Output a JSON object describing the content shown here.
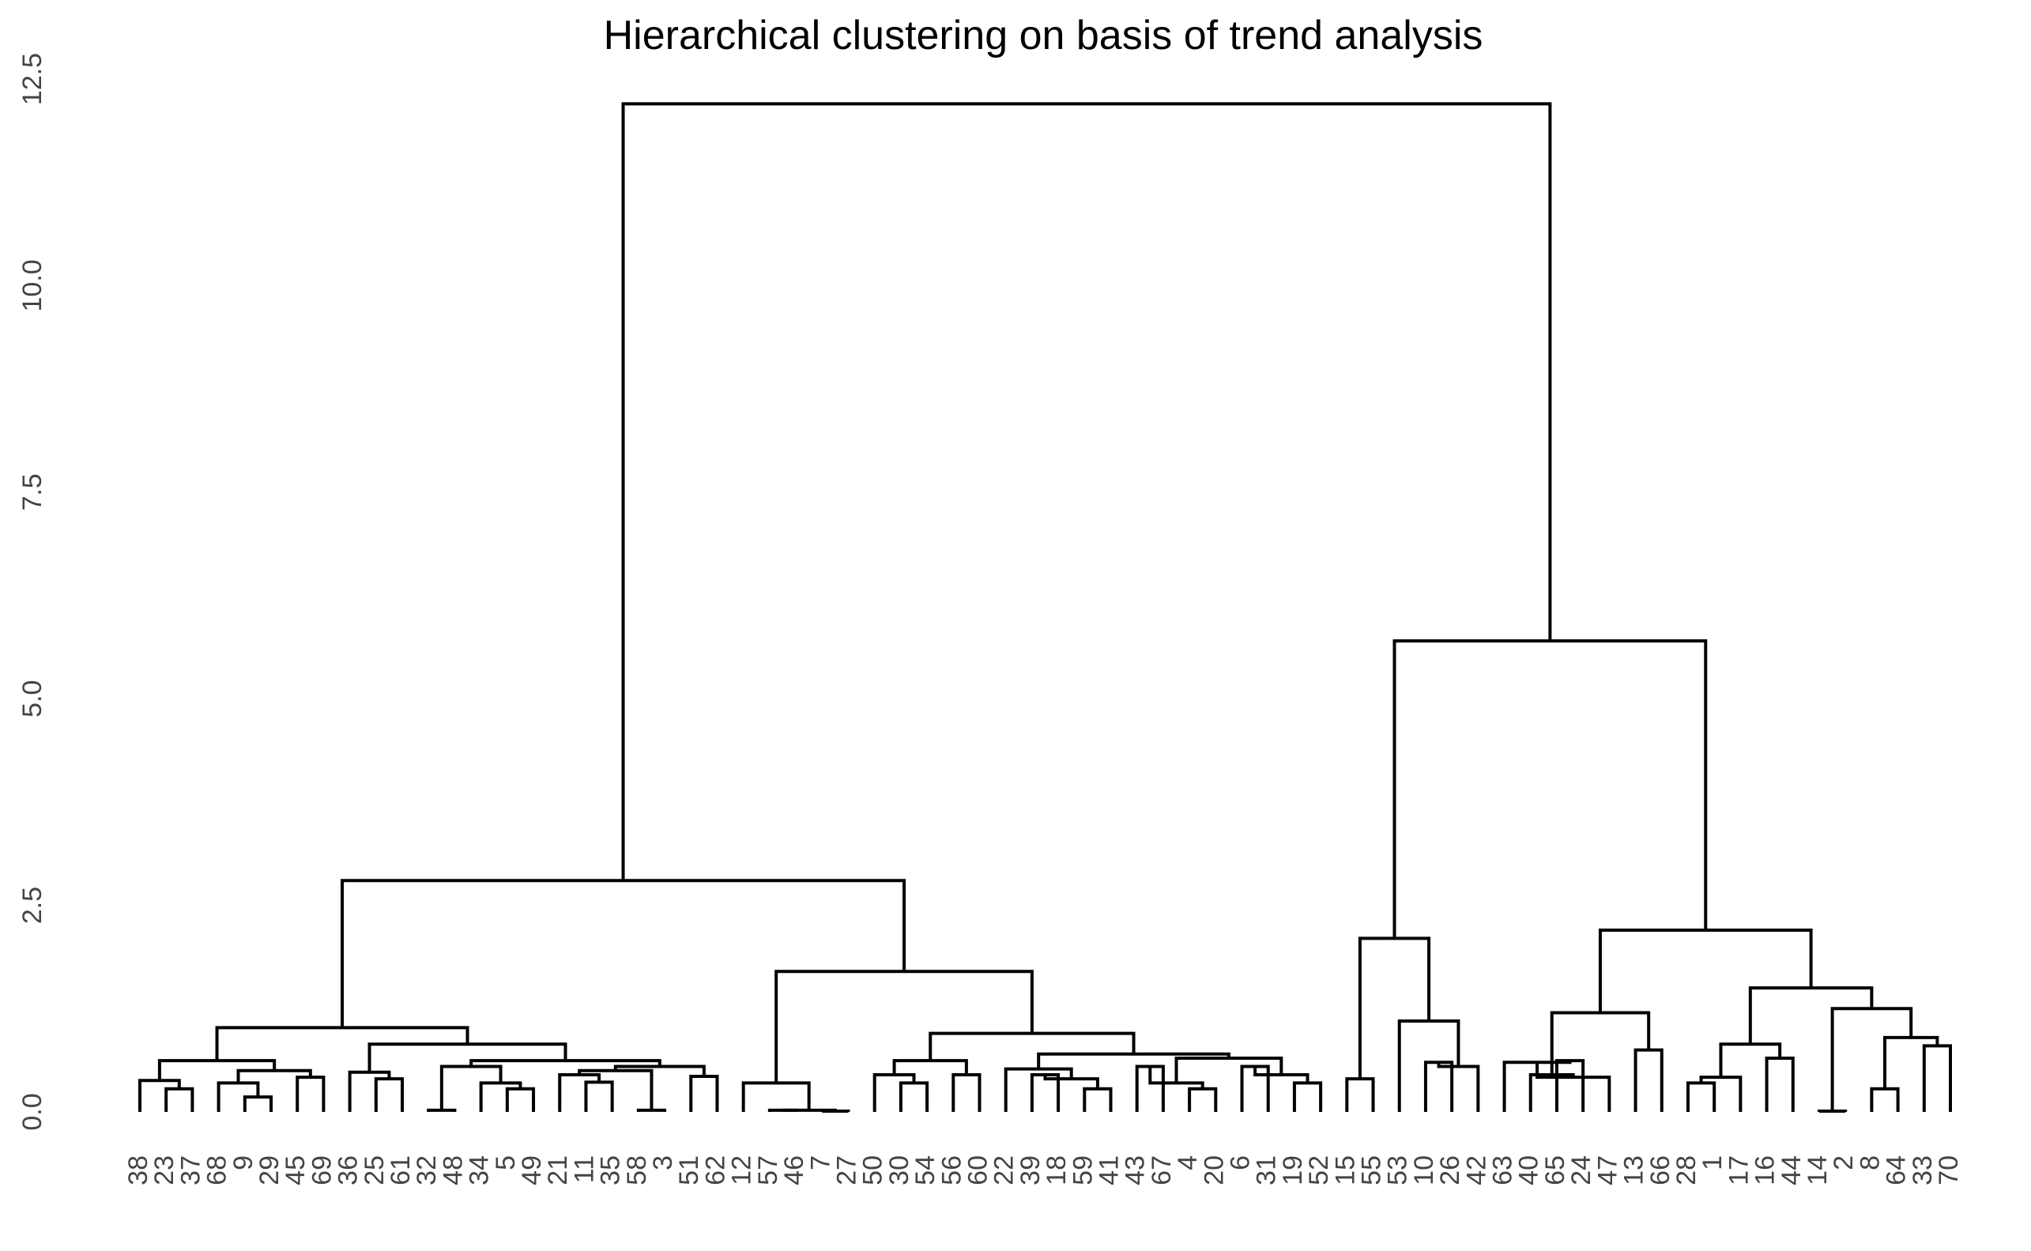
{
  "chart_data": {
    "type": "dendrogram",
    "title": "Hierarchical clustering on basis of  trend analysis",
    "xlabel": "",
    "ylabel": "",
    "ylim": [
      0,
      12.5
    ],
    "yticks": [
      "0.0",
      "2.5",
      "5.0",
      "7.5",
      "10.0",
      "12.5"
    ],
    "leaves": [
      "38",
      "23",
      "37",
      "68",
      "9",
      "29",
      "45",
      "69",
      "36",
      "25",
      "61",
      "32",
      "48",
      "34",
      "5",
      "49",
      "21",
      "11",
      "35",
      "58",
      "3",
      "51",
      "62",
      "12",
      "57",
      "46",
      "7",
      "27",
      "50",
      "30",
      "54",
      "56",
      "60",
      "22",
      "39",
      "18",
      "59",
      "41",
      "43",
      "67",
      "4",
      "20",
      "6",
      "31",
      "19",
      "52",
      "15",
      "55",
      "53",
      "10",
      "26",
      "42",
      "63",
      "40",
      "65",
      "24",
      "47",
      "13",
      "66",
      "28",
      "1",
      "17",
      "16",
      "44",
      "14",
      "2",
      "8",
      "64",
      "33",
      "70"
    ],
    "merges": [
      [
        1,
        2,
        0.28
      ],
      [
        0,
        "m0",
        0.38
      ],
      [
        4,
        5,
        0.18
      ],
      [
        3,
        "m2",
        0.35
      ],
      [
        6,
        7,
        0.42
      ],
      [
        "m3",
        "m4",
        0.5
      ],
      [
        "m1",
        "m5",
        0.62
      ],
      [
        9,
        10,
        0.4
      ],
      [
        8,
        "m7",
        0.48
      ],
      [
        11,
        12,
        0.02
      ],
      [
        14,
        15,
        0.28
      ],
      [
        13,
        "m10",
        0.35
      ],
      [
        "m11",
        "m9",
        0.55
      ],
      [
        17,
        18,
        0.36
      ],
      [
        16,
        "m13",
        0.45
      ],
      [
        19,
        20,
        0.02
      ],
      [
        "m14",
        "m15",
        0.5
      ],
      [
        21,
        22,
        0.43
      ],
      [
        "m16",
        "m17",
        0.55
      ],
      [
        "m18",
        "m12",
        0.62
      ],
      [
        "m19",
        "m8",
        0.82
      ],
      [
        "m20",
        "m6",
        1.02
      ],
      [
        24,
        25,
        0.02
      ],
      [
        26,
        27,
        0.01
      ],
      [
        "m22",
        "m23",
        0.02
      ],
      [
        23,
        "m24",
        0.35
      ],
      [
        29,
        30,
        0.35
      ],
      [
        28,
        "m26",
        0.45
      ],
      [
        31,
        32,
        0.45
      ],
      [
        "m27",
        "m28",
        0.62
      ],
      [
        34,
        35,
        0.45
      ],
      [
        36,
        37,
        0.28
      ],
      [
        "m30",
        "m31",
        0.4
      ],
      [
        33,
        "m32",
        0.52
      ],
      [
        38,
        39,
        0.55
      ],
      [
        40,
        41,
        0.28
      ],
      [
        "m35",
        "m34",
        0.35
      ],
      [
        42,
        43,
        0.55
      ],
      [
        44,
        45,
        0.35
      ],
      [
        "m37",
        "m38",
        0.45
      ],
      [
        "m36",
        "m39",
        0.65
      ],
      [
        "m33",
        "m40",
        0.7
      ],
      [
        "m41",
        "m29",
        0.95
      ],
      [
        "m42",
        "m25",
        1.7
      ],
      [
        "m21",
        "m43",
        2.8
      ],
      [
        46,
        47,
        0.4
      ],
      [
        49,
        50,
        0.6
      ],
      [
        51,
        "m46",
        0.55
      ],
      [
        48,
        "m47",
        1.1
      ],
      [
        "m48",
        "m45",
        2.1
      ],
      [
        54,
        55,
        0.62
      ],
      [
        52,
        "m50",
        0.6
      ],
      [
        56,
        "m51",
        0.42
      ],
      [
        "m52",
        53,
        0.45
      ],
      [
        57,
        58,
        0.75
      ],
      [
        "m53",
        "m54",
        1.2
      ],
      [
        59,
        60,
        0.35
      ],
      [
        61,
        "m56",
        0.42
      ],
      [
        62,
        63,
        0.65
      ],
      [
        "m57",
        "m58",
        0.82
      ],
      [
        64,
        65,
        0.01
      ],
      [
        66,
        67,
        0.28
      ],
      [
        68,
        69,
        0.8
      ],
      [
        "m61",
        "m62",
        0.9
      ],
      [
        "m60",
        "m63",
        1.25
      ],
      [
        "m59",
        "m64",
        1.5
      ],
      [
        "m55",
        "m65",
        2.2
      ],
      [
        "m49",
        "m66",
        5.7
      ],
      [
        "m44",
        "m67",
        12.2
      ]
    ]
  }
}
